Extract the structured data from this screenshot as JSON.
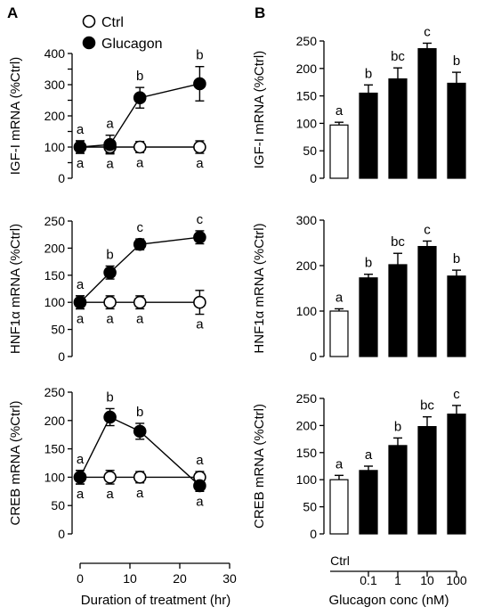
{
  "panels": {
    "A": "A",
    "B": "B"
  },
  "legend": {
    "ctrl": "Ctrl",
    "glucagon": "Glucagon"
  },
  "chart_data": [
    {
      "panel": "A",
      "type": "line",
      "ylabel": "IGF-I mRNA (%Ctrl)",
      "ylim": [
        0,
        400
      ],
      "yticks": [
        0,
        50,
        100,
        150,
        200,
        250,
        300,
        350,
        400
      ],
      "yticklabels": [
        "0",
        "",
        "100",
        "",
        "200",
        "",
        "300",
        "",
        "400"
      ],
      "x": [
        0,
        6,
        12,
        24
      ],
      "series": [
        {
          "name": "Ctrl",
          "values": [
            100,
            100,
            100,
            100
          ],
          "errors": [
            20,
            18,
            18,
            20
          ],
          "labels": [
            "a",
            "a",
            "a",
            "a"
          ]
        },
        {
          "name": "Glucagon",
          "values": [
            100,
            108,
            258,
            303
          ],
          "errors": [
            20,
            30,
            33,
            55
          ],
          "labels": [
            "a",
            "a",
            "b",
            "b"
          ]
        }
      ]
    },
    {
      "panel": "A",
      "type": "line",
      "ylabel": "HNF1α mRNA (%Ctrl)",
      "ylim": [
        0,
        250
      ],
      "yticks": [
        0,
        50,
        100,
        150,
        200,
        250
      ],
      "yticklabels": [
        "0",
        "50",
        "100",
        "150",
        "200",
        "250"
      ],
      "x": [
        0,
        6,
        12,
        24
      ],
      "series": [
        {
          "name": "Ctrl",
          "values": [
            100,
            100,
            100,
            100
          ],
          "errors": [
            12,
            12,
            12,
            22
          ],
          "labels": [
            "a",
            "a",
            "a",
            "a"
          ]
        },
        {
          "name": "Glucagon",
          "values": [
            100,
            155,
            207,
            220
          ],
          "errors": [
            12,
            12,
            10,
            12
          ],
          "labels": [
            "a",
            "b",
            "c",
            "c"
          ]
        }
      ]
    },
    {
      "panel": "A",
      "type": "line",
      "ylabel": "CREB mRNA (%Ctrl)",
      "ylim": [
        0,
        250
      ],
      "yticks": [
        0,
        50,
        100,
        150,
        200,
        250
      ],
      "yticklabels": [
        "0",
        "50",
        "100",
        "150",
        "200",
        "250"
      ],
      "x": [
        0,
        6,
        12,
        24
      ],
      "series": [
        {
          "name": "Ctrl",
          "values": [
            100,
            100,
            100,
            100
          ],
          "errors": [
            12,
            12,
            10,
            10
          ],
          "labels": [
            "a",
            "a",
            "a",
            "a"
          ]
        },
        {
          "name": "Glucagon",
          "values": [
            100,
            206,
            181,
            85
          ],
          "errors": [
            12,
            15,
            14,
            10
          ],
          "labels": [
            "a",
            "b",
            "b",
            "a"
          ]
        }
      ]
    },
    {
      "panel": "B",
      "type": "bar",
      "ylabel": "IGF-I mRNA (%Ctrl)",
      "ylim": [
        0,
        250
      ],
      "yticks": [
        0,
        50,
        100,
        150,
        200,
        250
      ],
      "categories": [
        "Ctrl",
        "0.1",
        "1",
        "10",
        "100"
      ],
      "values": [
        97,
        155,
        181,
        236,
        173
      ],
      "errors": [
        5,
        15,
        20,
        10,
        20
      ],
      "labels": [
        "a",
        "b",
        "bc",
        "c",
        "b"
      ]
    },
    {
      "panel": "B",
      "type": "bar",
      "ylabel": "HNF1α mRNA (%Ctrl)",
      "ylim": [
        0,
        300
      ],
      "yticks": [
        0,
        100,
        200,
        300
      ],
      "categories": [
        "Ctrl",
        "0.1",
        "1",
        "10",
        "100"
      ],
      "values": [
        100,
        173,
        202,
        242,
        177
      ],
      "errors": [
        5,
        8,
        25,
        12,
        13
      ],
      "labels": [
        "a",
        "b",
        "bc",
        "c",
        "b"
      ]
    },
    {
      "panel": "B",
      "type": "bar",
      "ylabel": "CREB mRNA (%Ctrl)",
      "ylim": [
        0,
        250
      ],
      "yticks": [
        0,
        50,
        100,
        150,
        200,
        250
      ],
      "categories": [
        "Ctrl",
        "0.1",
        "1",
        "10",
        "100"
      ],
      "values": [
        100,
        117,
        163,
        198,
        221
      ],
      "errors": [
        8,
        8,
        14,
        18,
        16
      ],
      "labels": [
        "a",
        "a",
        "b",
        "bc",
        "c"
      ]
    }
  ],
  "axes": {
    "a_xlabel": "Duration of treatment (hr)",
    "a_xticks": [
      0,
      10,
      20,
      30
    ],
    "b_xlabel": "Glucagon conc (nM)"
  }
}
